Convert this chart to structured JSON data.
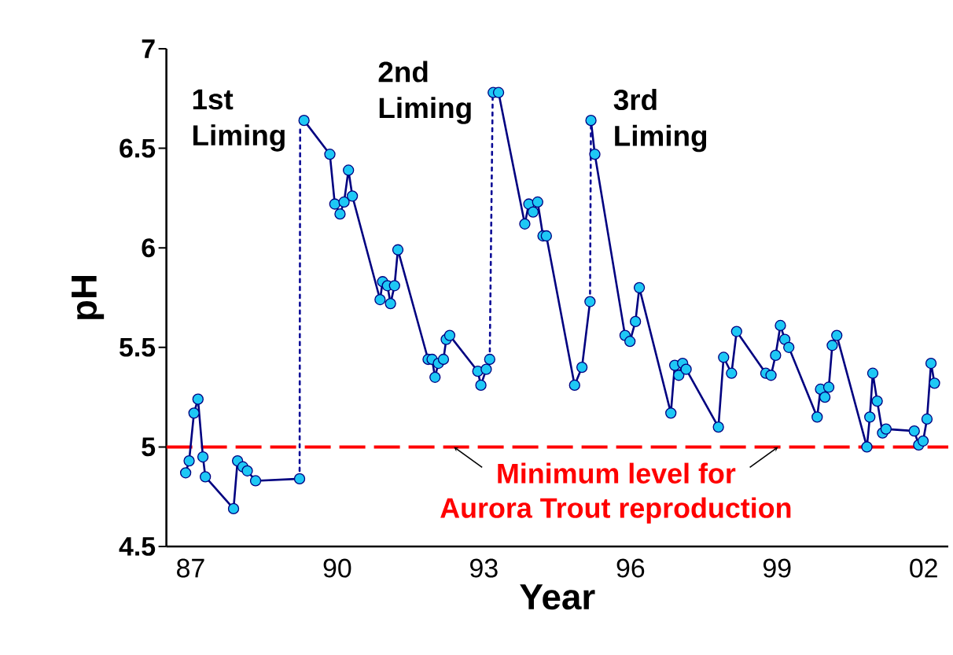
{
  "chart_data": {
    "type": "line",
    "xlabel": "Year",
    "ylabel": "pH",
    "xlim": [
      "1987",
      "2003"
    ],
    "ylim": [
      4.5,
      7
    ],
    "xticks": [
      {
        "value": "1987-07",
        "label": "87"
      },
      {
        "value": "1990-07",
        "label": "90"
      },
      {
        "value": "1993-07",
        "label": "93"
      },
      {
        "value": "1996-07",
        "label": "96"
      },
      {
        "value": "1999-07",
        "label": "99"
      },
      {
        "value": "2002-07",
        "label": "02"
      },
      {
        "value": "1987",
        "label": null
      },
      {
        "value": "1988",
        "label": null
      },
      {
        "value": "1989",
        "label": null
      },
      {
        "value": "1990",
        "label": null
      },
      {
        "value": "1991",
        "label": null
      },
      {
        "value": "1992",
        "label": null
      },
      {
        "value": "1993",
        "label": null
      },
      {
        "value": "1994",
        "label": null
      },
      {
        "value": "1995",
        "label": null
      },
      {
        "value": "1996",
        "label": null
      },
      {
        "value": "1997",
        "label": null
      },
      {
        "value": "1998",
        "label": null
      },
      {
        "value": "1999",
        "label": null
      },
      {
        "value": "2000",
        "label": null
      },
      {
        "value": "2001",
        "label": null
      },
      {
        "value": "2002",
        "label": null
      },
      {
        "value": "2003",
        "label": null
      }
    ],
    "yticks": [
      4.5,
      5,
      5.5,
      6,
      6.5,
      7
    ],
    "series": [
      {
        "color": "#000080",
        "marker": "circle",
        "line_style": "solid",
        "x": [
          "1987-05-25",
          "1987-06-20",
          "1987-07-26",
          "1987-08-25",
          "1987-10-01",
          "1987-10-19",
          "1988-05-17",
          "1988-06-16",
          "1988-07-26",
          "1988-08-28",
          "1988-10-29",
          "1989-09-23",
          "1989-10-11",
          "1989-10-26",
          "1990-05-07",
          "1990-06-13",
          "1990-07-22",
          "1990-08-21",
          "1990-09-23",
          "1990-10-22",
          "1991-05-17",
          "1991-06-05",
          "1991-07-11",
          "1991-08-03",
          "1991-09-02",
          "1991-09-27",
          "1992-05-10",
          "1992-06-09",
          "1992-07-01",
          "1992-07-26",
          "1992-09-02",
          "1992-09-23",
          "1992-10-19",
          "1993-05-17",
          "1993-06-09",
          "1993-07-19",
          "1993-08-14",
          "1993-08-28",
          "1993-09-09",
          "1993-10-19",
          "1994-05-03",
          "1994-06-02",
          "1994-07-04",
          "1994-08-07",
          "1994-09-16",
          "1994-10-11",
          "1995-05-10",
          "1995-07-04",
          "1995-09-02",
          "1995-09-05",
          "1995-09-09",
          "1995-10-08",
          "1996-05-21",
          "1996-06-27",
          "1996-08-07",
          "1996-09-05",
          "1997-04-29",
          "1997-05-28",
          "1997-06-27",
          "1997-07-26",
          "1997-08-21",
          "1998-04-19",
          "1998-05-28",
          "1998-07-26",
          "1998-09-02",
          "1999-04-08",
          "1999-05-17",
          "1999-06-20",
          "1999-07-26",
          "1999-08-28",
          "1999-09-27",
          "2000-04-26",
          "2000-05-21",
          "2000-06-23",
          "2000-07-22",
          "2000-08-17",
          "2000-09-20",
          "2001-05-03",
          "2001-05-25",
          "2001-06-16",
          "2001-07-19",
          "2001-08-28",
          "2001-09-23",
          "2002-04-22",
          "2002-05-25",
          "2002-06-27",
          "2002-07-26",
          "2002-08-25",
          "2002-09-20"
        ],
        "values": [
          4.87,
          4.93,
          5.17,
          5.24,
          4.95,
          4.85,
          4.69,
          4.93,
          4.9,
          4.88,
          4.83,
          4.84,
          null,
          6.64,
          6.47,
          6.22,
          6.17,
          6.23,
          6.39,
          6.26,
          5.74,
          5.83,
          5.81,
          5.72,
          5.81,
          5.99,
          5.44,
          5.44,
          5.35,
          5.42,
          5.44,
          5.54,
          5.56,
          5.38,
          5.31,
          5.39,
          5.44,
          null,
          6.78,
          6.78,
          6.12,
          6.22,
          6.18,
          6.23,
          6.06,
          6.06,
          5.31,
          5.4,
          5.73,
          null,
          6.64,
          6.47,
          5.56,
          5.53,
          5.63,
          5.8,
          5.17,
          5.41,
          5.36,
          5.42,
          5.39,
          5.1,
          5.45,
          5.37,
          5.58,
          5.37,
          5.36,
          5.46,
          5.61,
          5.54,
          5.5,
          5.15,
          5.29,
          5.25,
          5.3,
          5.51,
          5.56,
          5.0,
          5.15,
          5.37,
          5.23,
          5.07,
          5.09,
          5.08,
          5.01,
          5.03,
          5.14,
          5.42,
          5.32
        ]
      },
      {
        "type": "line",
        "color": "#0a0a96",
        "marker": "none",
        "line_style": "dotted",
        "x": [
          "1989-09-23",
          "1989-09-27"
        ],
        "values": [
          4.84,
          6.6
        ]
      },
      {
        "type": "line",
        "color": "#0a0a96",
        "marker": "none",
        "line_style": "dotted",
        "x": [
          "1993-08-14",
          "1993-09-05"
        ],
        "values": [
          5.44,
          6.76
        ]
      },
      {
        "type": "line",
        "color": "#0a0a96",
        "marker": "none",
        "line_style": "dotted",
        "x": [
          "1995-09-02",
          "1995-09-09"
        ],
        "values": [
          5.73,
          6.62
        ]
      }
    ],
    "ref_lines": [
      {
        "axis": "y",
        "value": 5,
        "label": "Minimum level for Aurora Trout reproduction",
        "color": "#ff0000",
        "line_style": "dashed"
      }
    ],
    "annotations": [
      {
        "text": "1st Liming",
        "x": "1989-09-27",
        "y": 6.64
      },
      {
        "text": "2nd Liming",
        "x": "1993-09-05",
        "y": 6.78
      },
      {
        "text": "3rd Liming",
        "x": "1995-09-09",
        "y": 6.64
      }
    ]
  }
}
